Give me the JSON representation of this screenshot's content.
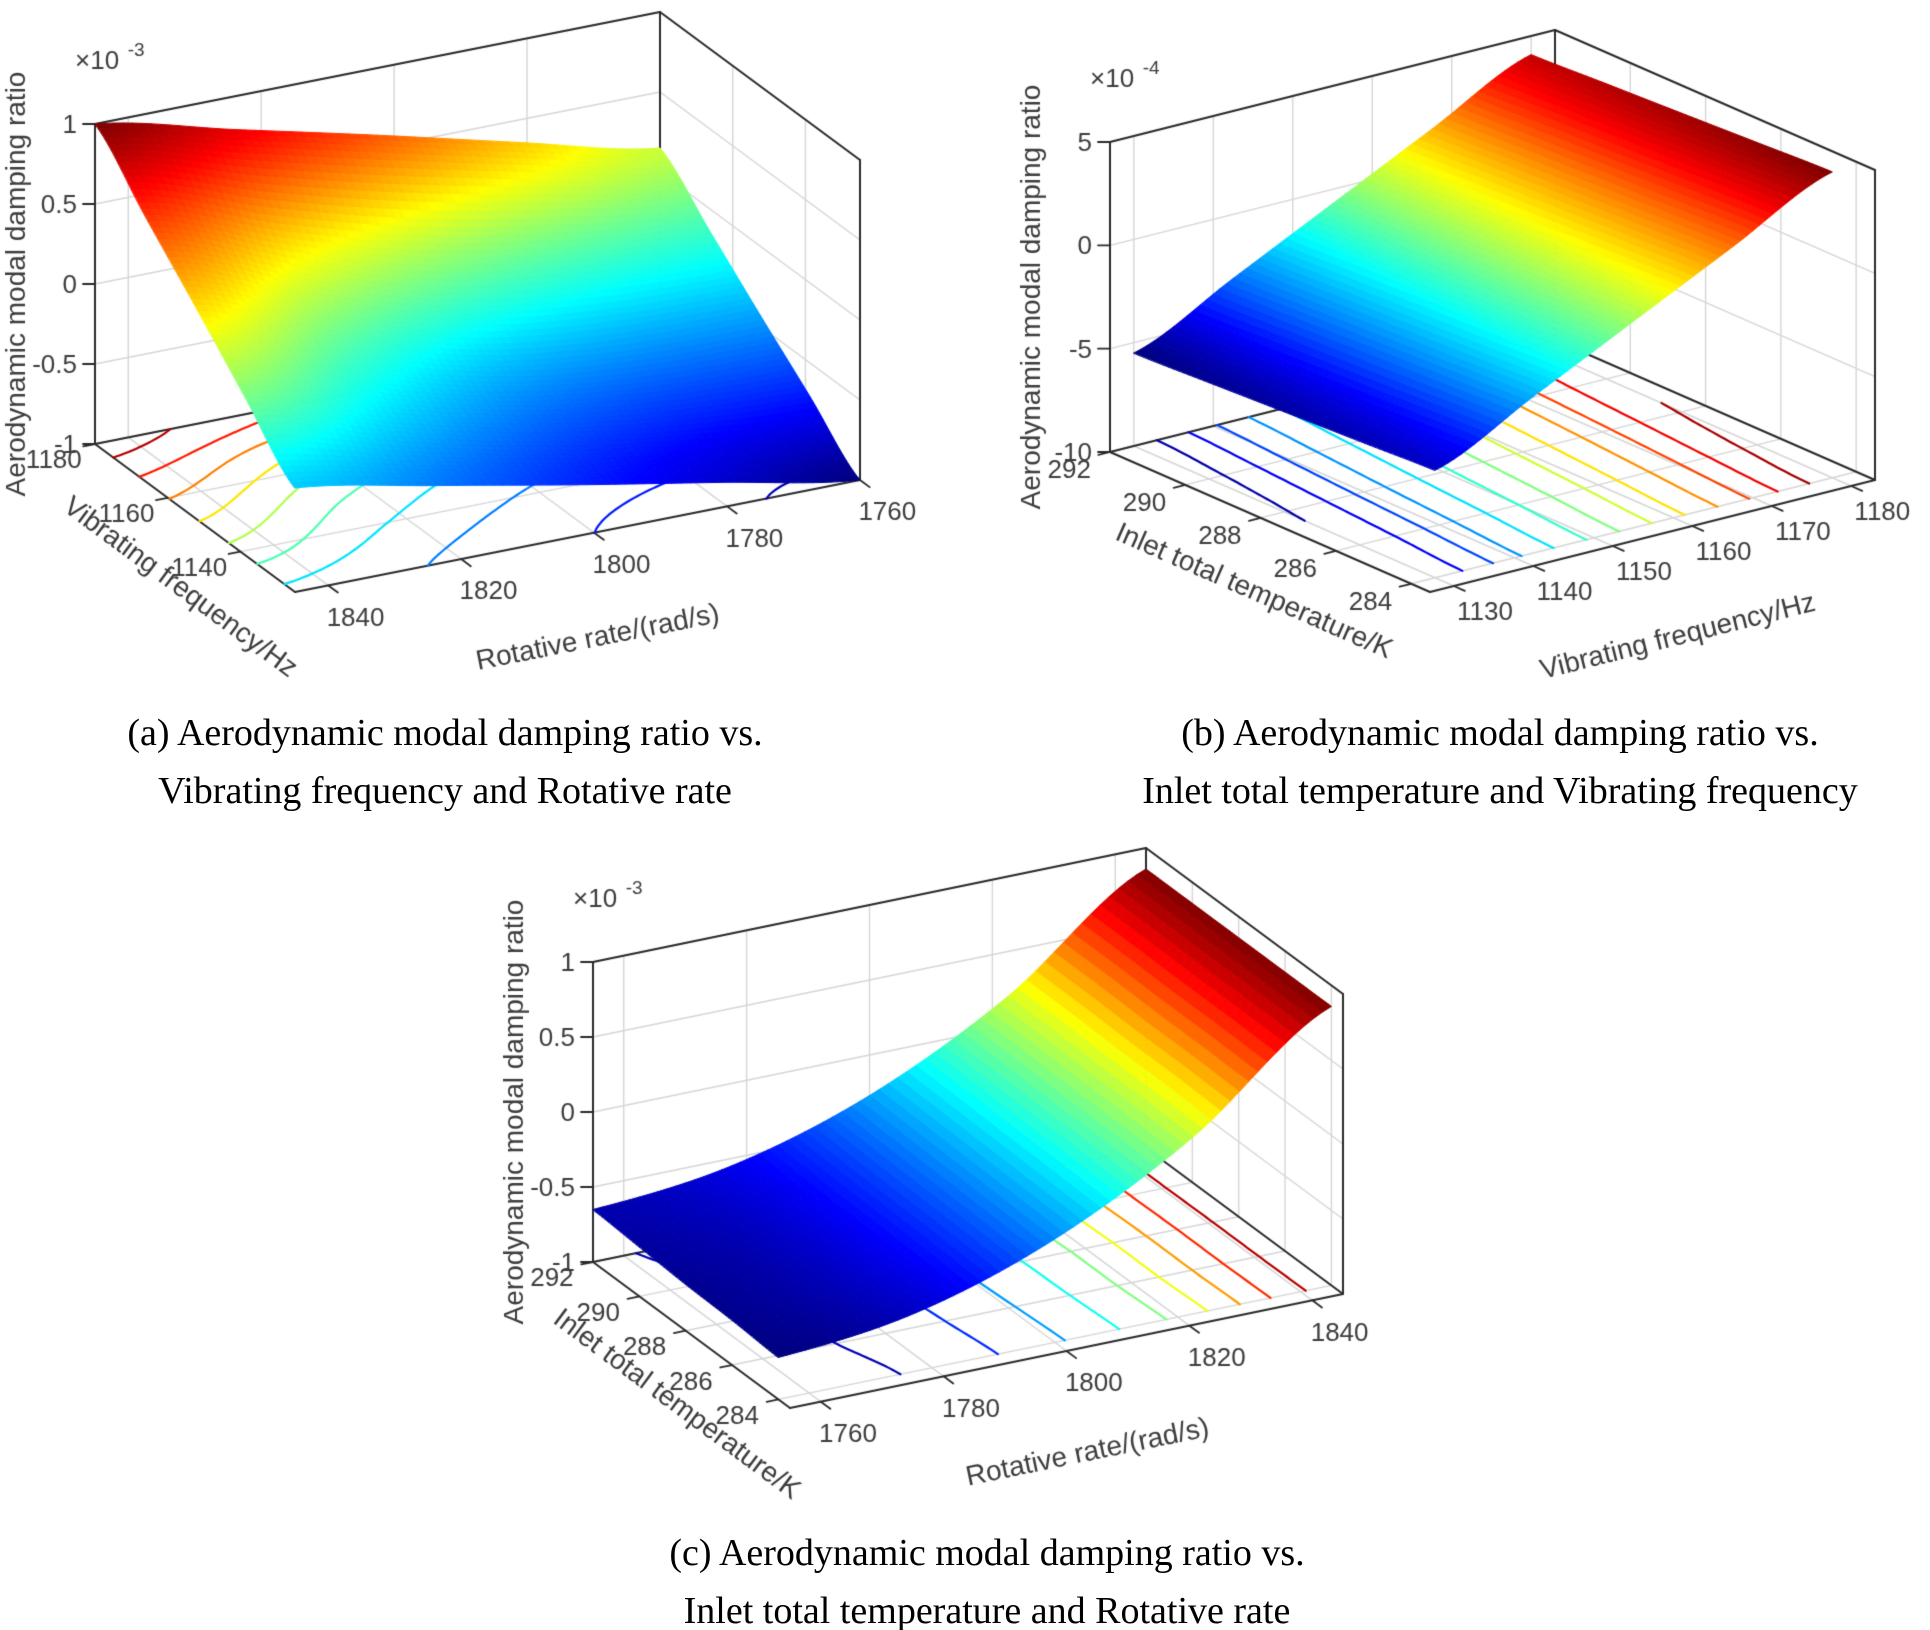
{
  "page": {
    "background": "#ffffff",
    "text_color": "#000000"
  },
  "captions": [
    {
      "id": "a",
      "line1": "(a) Aerodynamic modal damping ratio vs.",
      "line2": "Vibrating frequency and Rotative rate"
    },
    {
      "id": "b",
      "line1": "(b) Aerodynamic modal damping ratio vs.",
      "line2": "Inlet total temperature and Vibrating frequency"
    },
    {
      "id": "c",
      "line1": "(c) Aerodynamic modal damping ratio vs.",
      "line2": "Inlet total temperature and Rotative rate"
    }
  ],
  "style": {
    "grid_color": "#d6d6d6",
    "box_edge_color": "#2a2a2a",
    "tick_text_color": "#3d3d3d",
    "colormap_min_color": "#00007f",
    "colormap_max_color": "#7f0000"
  },
  "chart_data": [
    {
      "id": "a",
      "type": "surface",
      "colormap": "jet",
      "contour_levels": 10,
      "z_axis": {
        "label": "Aerodynamic modal damping ratio",
        "exponent_base": "×10",
        "exponent_power": "-3",
        "ticks": [
          1,
          0.5,
          0,
          -0.5,
          -1
        ],
        "lim": [
          -1,
          1
        ],
        "unit_multiplier": "1e-3"
      },
      "x_axis": {
        "label": "Rotative rate/(rad/s)",
        "ticks": [
          1840,
          1820,
          1800,
          1780,
          1760
        ],
        "range": [
          1760,
          1845
        ],
        "reversed": true
      },
      "y_axis": {
        "label": "Vibrating frequency/Hz",
        "ticks": [
          1140,
          1160,
          1180
        ],
        "range": [
          1125,
          1180
        ],
        "reversed": false
      },
      "surface": {
        "x_values": [
          1845,
          1823.75,
          1802.5,
          1781.25,
          1760
        ],
        "y_values": [
          1125,
          1138.75,
          1152.5,
          1166.25,
          1180
        ],
        "z_values": [
          [
            -0.35,
            -0.51,
            -0.68,
            -0.84,
            -1.0
          ],
          [
            -0.01,
            -0.31,
            -0.53,
            -0.66,
            -0.71
          ],
          [
            0.33,
            -0.04,
            -0.3,
            -0.41,
            -0.43
          ],
          [
            0.66,
            0.34,
            0.09,
            -0.06,
            -0.14
          ],
          [
            1.0,
            0.79,
            0.58,
            0.36,
            0.15
          ]
        ]
      }
    },
    {
      "id": "b",
      "type": "surface",
      "colormap": "jet",
      "contour_levels": 13,
      "z_axis": {
        "label": "Aerodynamic modal damping ratio",
        "exponent_base": "×10",
        "exponent_power": "-4",
        "ticks": [
          5,
          0,
          -5,
          -10
        ],
        "lim": [
          -10,
          5
        ],
        "unit_multiplier": "1e-4"
      },
      "x_axis": {
        "label": "Vibrating frequency/Hz",
        "ticks": [
          1130,
          1140,
          1150,
          1160,
          1170,
          1180
        ],
        "range": [
          1127,
          1183
        ],
        "reversed": false
      },
      "y_axis": {
        "label": "Inlet total temperature/K",
        "ticks": [
          284,
          286,
          288,
          290,
          292
        ],
        "range": [
          283.5,
          292
        ],
        "reversed": false
      },
      "surface": {
        "x_values": [
          1130,
          1142.5,
          1155,
          1167.5,
          1180
        ],
        "y_values": [
          284,
          286,
          288,
          290,
          292
        ],
        "z_values": [
          [
            -4.8,
            -2.4,
            0.0,
            2.4,
            4.8
          ],
          [
            -4.98,
            -2.58,
            -0.18,
            2.23,
            4.63
          ],
          [
            -5.15,
            -2.75,
            -0.35,
            2.05,
            4.45
          ],
          [
            -5.33,
            -2.93,
            -0.53,
            1.88,
            4.28
          ],
          [
            -5.5,
            -3.1,
            -0.7,
            1.7,
            4.1
          ]
        ]
      }
    },
    {
      "id": "c",
      "type": "surface",
      "colormap": "jet",
      "contour_levels": 9,
      "z_axis": {
        "label": "Aerodynamic modal damping ratio",
        "exponent_base": "×10",
        "exponent_power": "-3",
        "ticks": [
          1,
          0.5,
          0,
          -0.5,
          -1
        ],
        "lim": [
          -1,
          1
        ],
        "unit_multiplier": "1e-3"
      },
      "x_axis": {
        "label": "Rotative rate/(rad/s)",
        "ticks": [
          1760,
          1780,
          1800,
          1820,
          1840
        ],
        "range": [
          1755,
          1845
        ],
        "reversed": false
      },
      "y_axis": {
        "label": "Inlet total temperature/K",
        "ticks": [
          284,
          286,
          288,
          290,
          292
        ],
        "range": [
          283.5,
          292
        ],
        "reversed": false
      },
      "surface": {
        "x_values": [
          1755,
          1777.5,
          1800,
          1822.5,
          1845
        ],
        "y_values": [
          284,
          286,
          288,
          290,
          292
        ],
        "z_values": [
          [
            -0.72,
            -0.61,
            -0.31,
            0.18,
            0.86
          ],
          [
            -0.7,
            -0.59,
            -0.3,
            0.19,
            0.86
          ],
          [
            -0.69,
            -0.58,
            -0.29,
            0.19,
            0.86
          ],
          [
            -0.67,
            -0.57,
            -0.28,
            0.2,
            0.86
          ],
          [
            -0.65,
            -0.55,
            -0.27,
            0.2,
            0.86
          ]
        ]
      }
    }
  ]
}
